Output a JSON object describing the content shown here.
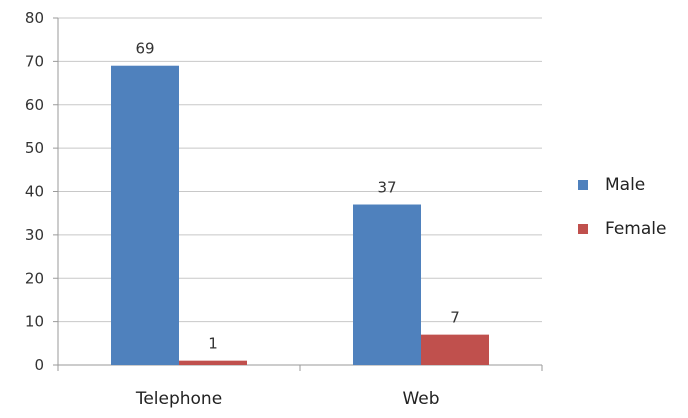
{
  "chart_data": {
    "type": "bar",
    "categories": [
      "Telephone",
      "Web"
    ],
    "series": [
      {
        "name": "Male",
        "values": [
          69,
          37
        ],
        "color": "#4F81BD"
      },
      {
        "name": "Female",
        "values": [
          1,
          7
        ],
        "color": "#C0504D"
      }
    ],
    "ylim": [
      0,
      80
    ],
    "yticks": [
      0,
      10,
      20,
      30,
      40,
      50,
      60,
      70,
      80
    ],
    "grid": true,
    "legend": "right",
    "data_labels": true,
    "title": "",
    "xlabel": "",
    "ylabel": ""
  }
}
